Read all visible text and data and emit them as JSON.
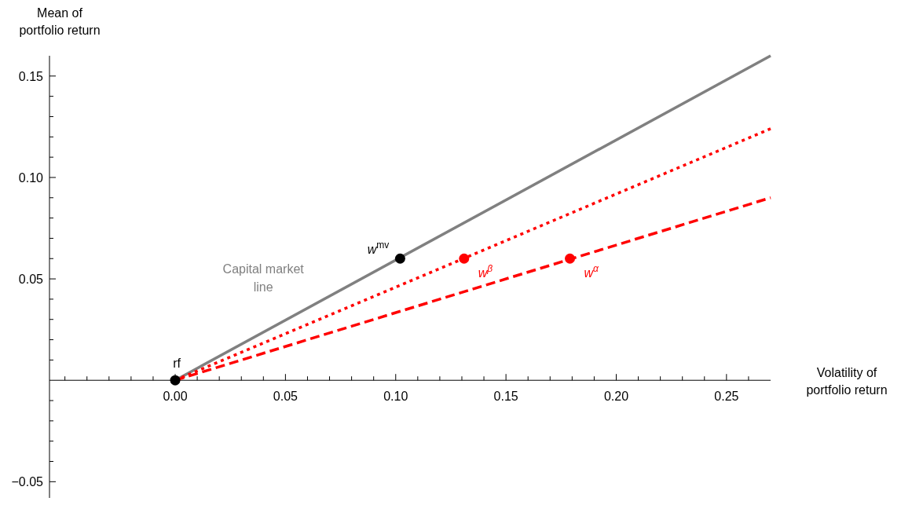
{
  "chart_data": {
    "type": "line",
    "xlabel": "Volatility of\nportfolio return",
    "ylabel": "Mean of\nportfolio return",
    "xlim": [
      -0.057,
      0.27
    ],
    "ylim": [
      -0.058,
      0.16
    ],
    "xticks": [
      {
        "value": -0.05,
        "label": null
      },
      {
        "value": -0.04,
        "label": null
      },
      {
        "value": -0.03,
        "label": null
      },
      {
        "value": -0.02,
        "label": null
      },
      {
        "value": -0.01,
        "label": null
      },
      {
        "value": 0,
        "label": "0.00"
      },
      {
        "value": 0.01,
        "label": null
      },
      {
        "value": 0.02,
        "label": null
      },
      {
        "value": 0.03,
        "label": null
      },
      {
        "value": 0.04,
        "label": null
      },
      {
        "value": 0.05,
        "label": "0.05"
      },
      {
        "value": 0.06,
        "label": null
      },
      {
        "value": 0.07,
        "label": null
      },
      {
        "value": 0.08,
        "label": null
      },
      {
        "value": 0.09,
        "label": null
      },
      {
        "value": 0.1,
        "label": "0.10"
      },
      {
        "value": 0.11,
        "label": null
      },
      {
        "value": 0.12,
        "label": null
      },
      {
        "value": 0.13,
        "label": null
      },
      {
        "value": 0.14,
        "label": null
      },
      {
        "value": 0.15,
        "label": "0.15"
      },
      {
        "value": 0.16,
        "label": null
      },
      {
        "value": 0.17,
        "label": null
      },
      {
        "value": 0.18,
        "label": null
      },
      {
        "value": 0.19,
        "label": null
      },
      {
        "value": 0.2,
        "label": "0.20"
      },
      {
        "value": 0.21,
        "label": null
      },
      {
        "value": 0.22,
        "label": null
      },
      {
        "value": 0.23,
        "label": null
      },
      {
        "value": 0.24,
        "label": null
      },
      {
        "value": 0.25,
        "label": "0.25"
      },
      {
        "value": 0.26,
        "label": null
      }
    ],
    "yticks": [
      {
        "value": -0.05,
        "label": "−0.05"
      },
      {
        "value": -0.04,
        "label": null
      },
      {
        "value": -0.03,
        "label": null
      },
      {
        "value": -0.02,
        "label": null
      },
      {
        "value": -0.01,
        "label": null
      },
      {
        "value": 0.01,
        "label": null
      },
      {
        "value": 0.02,
        "label": null
      },
      {
        "value": 0.03,
        "label": null
      },
      {
        "value": 0.04,
        "label": null
      },
      {
        "value": 0.05,
        "label": "0.05"
      },
      {
        "value": 0.06,
        "label": null
      },
      {
        "value": 0.07,
        "label": null
      },
      {
        "value": 0.08,
        "label": null
      },
      {
        "value": 0.09,
        "label": null
      },
      {
        "value": 0.1,
        "label": "0.10"
      },
      {
        "value": 0.11,
        "label": null
      },
      {
        "value": 0.12,
        "label": null
      },
      {
        "value": 0.13,
        "label": null
      },
      {
        "value": 0.14,
        "label": null
      },
      {
        "value": 0.15,
        "label": "0.15"
      }
    ],
    "series": [
      {
        "name": "Capital market line",
        "color": "#808080",
        "line_style": "solid",
        "x": [
          0,
          0.27
        ],
        "values": [
          0,
          0.16
        ]
      },
      {
        "color": "#ff0000",
        "line_style": "dotted",
        "x": [
          0,
          0.27
        ],
        "values": [
          0,
          0.124
        ]
      },
      {
        "color": "#ff0000",
        "line_style": "dashed",
        "x": [
          0,
          0.27
        ],
        "values": [
          0,
          0.09
        ]
      },
      {
        "type": "scatter",
        "color": "#000000",
        "marker": "circle",
        "x": [
          0,
          0.102
        ],
        "values": [
          0,
          0.06
        ]
      },
      {
        "type": "scatter",
        "color": "#ff0000",
        "marker": "circle",
        "x": [
          0.131,
          0.179
        ],
        "values": [
          0.06,
          0.06
        ]
      }
    ],
    "annotations": [
      {
        "text": "rf",
        "x": 0,
        "y": 0
      },
      {
        "text": "w$^{mv}$",
        "x": 0.102,
        "y": 0.06
      },
      {
        "text": "w$^{β}$",
        "x": 0.131,
        "y": 0.06
      },
      {
        "text": "w$^{α}$",
        "x": 0.179,
        "y": 0.06
      }
    ],
    "grid": false
  }
}
